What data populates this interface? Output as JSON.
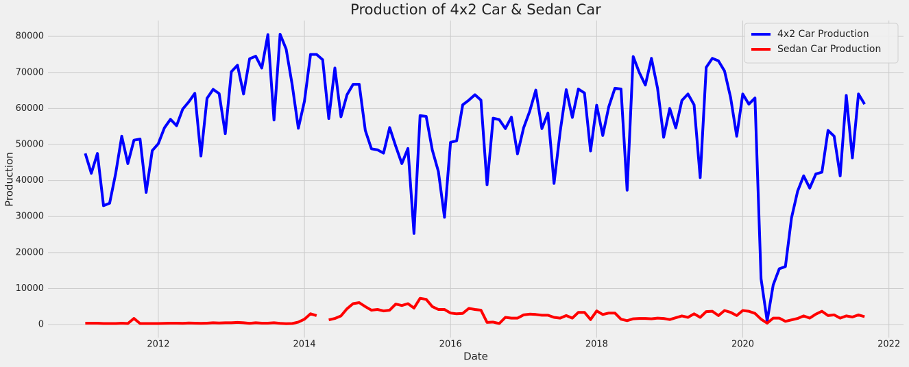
{
  "chart_data": {
    "type": "line",
    "title": "Production of 4x2 Car & Sedan Car",
    "x_label": "Date",
    "y_label": "Production",
    "x": [
      2011,
      2011.0833,
      2011.1667,
      2011.25,
      2011.3333,
      2011.4167,
      2011.5,
      2011.5833,
      2011.6667,
      2011.75,
      2011.8333,
      2011.9167,
      2012,
      2012.0833,
      2012.1667,
      2012.25,
      2012.3333,
      2012.4167,
      2012.5,
      2012.5833,
      2012.6667,
      2012.75,
      2012.8333,
      2012.9167,
      2013,
      2013.0833,
      2013.1667,
      2013.25,
      2013.3333,
      2013.4167,
      2013.5,
      2013.5833,
      2013.6667,
      2013.75,
      2013.8333,
      2013.9167,
      2014,
      2014.0833,
      2014.1667,
      2014.25,
      2014.3333,
      2014.4167,
      2014.5,
      2014.5833,
      2014.6667,
      2014.75,
      2014.8333,
      2014.9167,
      2015,
      2015.0833,
      2015.1667,
      2015.25,
      2015.3333,
      2015.4167,
      2015.5,
      2015.5833,
      2015.6667,
      2015.75,
      2015.8333,
      2015.9167,
      2016,
      2016.0833,
      2016.1667,
      2016.25,
      2016.3333,
      2016.4167,
      2016.5,
      2016.5833,
      2016.6667,
      2016.75,
      2016.8333,
      2016.9167,
      2017,
      2017.0833,
      2017.1667,
      2017.25,
      2017.3333,
      2017.4167,
      2017.5,
      2017.5833,
      2017.6667,
      2017.75,
      2017.8333,
      2017.9167,
      2018,
      2018.0833,
      2018.1667,
      2018.25,
      2018.3333,
      2018.4167,
      2018.5,
      2018.5833,
      2018.6667,
      2018.75,
      2018.8333,
      2018.9167,
      2019,
      2019.0833,
      2019.1667,
      2019.25,
      2019.3333,
      2019.4167,
      2019.5,
      2019.5833,
      2019.6667,
      2019.75,
      2019.8333,
      2019.9167,
      2020,
      2020.0833,
      2020.1667,
      2020.25,
      2020.3333,
      2020.4167,
      2020.5,
      2020.5833,
      2020.6667,
      2020.75,
      2020.8333,
      2020.9167,
      2021,
      2021.0833,
      2021.1667,
      2021.25,
      2021.3333,
      2021.4167,
      2021.5,
      2021.5833,
      2021.6667
    ],
    "series": [
      {
        "name": "4x2 Car Production",
        "color": "#0000ff",
        "values": [
          47500,
          42000,
          47500,
          33000,
          33700,
          42000,
          52300,
          44700,
          51200,
          51500,
          36700,
          48300,
          50200,
          54600,
          57000,
          55200,
          59800,
          61800,
          64200,
          46800,
          62800,
          65300,
          64100,
          53000,
          70200,
          72000,
          64000,
          73800,
          74500,
          71200,
          80500,
          56800,
          80600,
          76500,
          66500,
          54500,
          62000,
          75000,
          75000,
          73500,
          57200,
          71200,
          57700,
          63800,
          66700,
          66700,
          53900,
          48800,
          48500,
          47600,
          54700,
          49500,
          44700,
          48900,
          25300,
          58000,
          57800,
          48500,
          42500,
          29800,
          50600,
          51000,
          61000,
          62300,
          63800,
          62300,
          38800,
          57300,
          56900,
          54400,
          57600,
          47400,
          54600,
          59200,
          65100,
          54400,
          58700,
          39200,
          53500,
          65200,
          57500,
          65400,
          64300,
          48200,
          60900,
          52500,
          60500,
          65600,
          65400,
          37300,
          74400,
          70000,
          66500,
          73900,
          65600,
          52000,
          60000,
          54600,
          62200,
          64000,
          61000,
          40800,
          71400,
          73900,
          73200,
          70400,
          63000,
          52300,
          64000,
          61200,
          62900,
          12700,
          1000,
          11000,
          15500,
          16100,
          29600,
          37000,
          41300,
          37900,
          41800,
          42300,
          53900,
          52300,
          41300,
          63600,
          46300,
          64000,
          61200
        ]
      },
      {
        "name": "Sedan Car Production",
        "color": "#ff0000",
        "values": [
          400,
          400,
          400,
          300,
          300,
          300,
          400,
          300,
          1700,
          300,
          300,
          300,
          300,
          350,
          400,
          400,
          350,
          450,
          400,
          350,
          400,
          500,
          450,
          500,
          500,
          600,
          500,
          350,
          500,
          400,
          400,
          500,
          350,
          250,
          300,
          700,
          1500,
          3000,
          2500,
          null,
          1300,
          1700,
          2400,
          4400,
          5800,
          6100,
          5000,
          4000,
          4200,
          3800,
          4000,
          5700,
          5300,
          5800,
          4600,
          7300,
          7000,
          5000,
          4200,
          4200,
          3200,
          3000,
          3100,
          4500,
          4200,
          4000,
          600,
          700,
          300,
          2000,
          1800,
          1800,
          2700,
          2900,
          2800,
          2600,
          2600,
          2000,
          1800,
          2500,
          1800,
          3400,
          3400,
          1400,
          3800,
          2800,
          3200,
          3200,
          1500,
          1100,
          1600,
          1700,
          1700,
          1600,
          1800,
          1700,
          1400,
          1900,
          2400,
          2000,
          3000,
          2000,
          3600,
          3700,
          2500,
          3900,
          3400,
          2500,
          3900,
          3700,
          3100,
          1500,
          400,
          1800,
          1800,
          900,
          1300,
          1700,
          2400,
          1800,
          2900,
          3700,
          2500,
          2700,
          1800,
          2400,
          2100,
          2700,
          2200
        ]
      }
    ],
    "xlim": [
      2010.49,
      2022.2
    ],
    "xticks": [
      2012,
      2014,
      2016,
      2018,
      2020,
      2022
    ],
    "ylim": [
      -3600,
      84400
    ],
    "yticks": [
      0,
      10000,
      20000,
      30000,
      40000,
      50000,
      60000,
      70000,
      80000
    ],
    "grid": true,
    "legend": "upper right"
  }
}
